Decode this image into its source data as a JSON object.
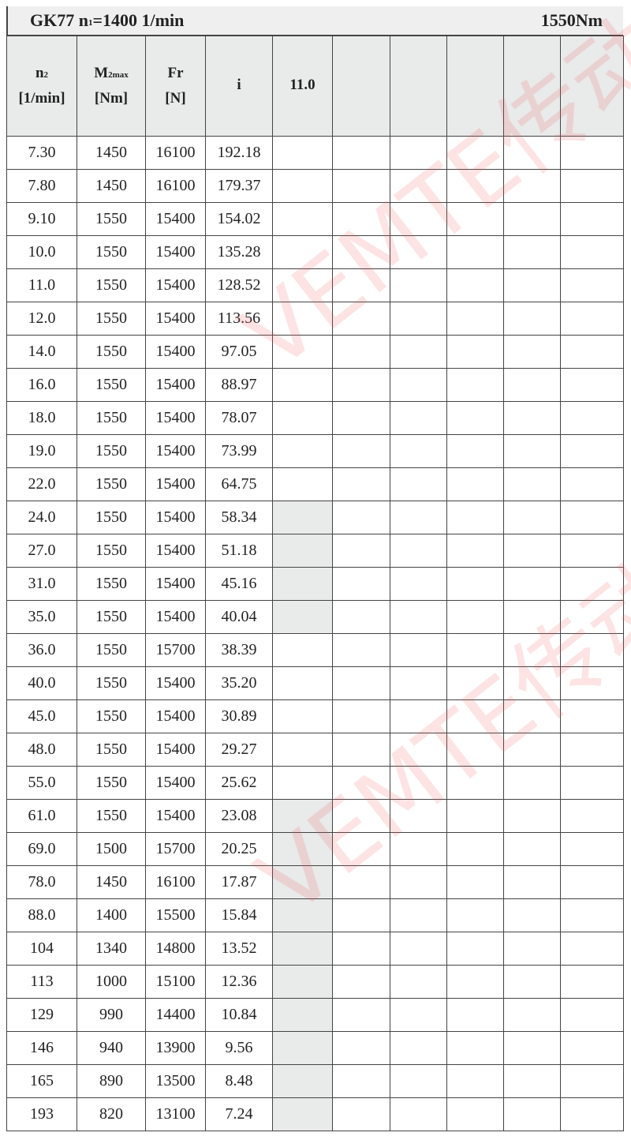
{
  "title": {
    "model": "GK77",
    "n1_label": "n",
    "n1_sub": "1",
    "n1_value": "=1400 1/min",
    "torque": "1550Nm"
  },
  "headers": [
    {
      "main": "n",
      "sub": "2",
      "unit": "[1/min]"
    },
    {
      "main": "M",
      "sub": "2max",
      "unit": "[Nm]"
    },
    {
      "main": "Fr",
      "sub": "",
      "unit": "[N]"
    },
    {
      "main": "i",
      "sub": "",
      "unit": ""
    },
    {
      "main": "11.0",
      "sub": "",
      "unit": ""
    }
  ],
  "empty_columns": 5,
  "shade_color": "#e9eaea",
  "watermark": "VEMTE传动",
  "rows": [
    {
      "n2": "7.30",
      "m2": "1450",
      "fr": "16100",
      "i": "192.18",
      "shaded": false
    },
    {
      "n2": "7.80",
      "m2": "1450",
      "fr": "16100",
      "i": "179.37",
      "shaded": false
    },
    {
      "n2": "9.10",
      "m2": "1550",
      "fr": "15400",
      "i": "154.02",
      "shaded": false
    },
    {
      "n2": "10.0",
      "m2": "1550",
      "fr": "15400",
      "i": "135.28",
      "shaded": false
    },
    {
      "n2": "11.0",
      "m2": "1550",
      "fr": "15400",
      "i": "128.52",
      "shaded": false
    },
    {
      "n2": "12.0",
      "m2": "1550",
      "fr": "15400",
      "i": "113.56",
      "shaded": false
    },
    {
      "n2": "14.0",
      "m2": "1550",
      "fr": "15400",
      "i": "97.05",
      "shaded": false
    },
    {
      "n2": "16.0",
      "m2": "1550",
      "fr": "15400",
      "i": "88.97",
      "shaded": false
    },
    {
      "n2": "18.0",
      "m2": "1550",
      "fr": "15400",
      "i": "78.07",
      "shaded": false
    },
    {
      "n2": "19.0",
      "m2": "1550",
      "fr": "15400",
      "i": "73.99",
      "shaded": false
    },
    {
      "n2": "22.0",
      "m2": "1550",
      "fr": "15400",
      "i": "64.75",
      "shaded": false
    },
    {
      "n2": "24.0",
      "m2": "1550",
      "fr": "15400",
      "i": "58.34",
      "shaded": true
    },
    {
      "n2": "27.0",
      "m2": "1550",
      "fr": "15400",
      "i": "51.18",
      "shaded": true
    },
    {
      "n2": "31.0",
      "m2": "1550",
      "fr": "15400",
      "i": "45.16",
      "shaded": true
    },
    {
      "n2": "35.0",
      "m2": "1550",
      "fr": "15400",
      "i": "40.04",
      "shaded": true
    },
    {
      "n2": "36.0",
      "m2": "1550",
      "fr": "15700",
      "i": "38.39",
      "shaded": false
    },
    {
      "n2": "40.0",
      "m2": "1550",
      "fr": "15400",
      "i": "35.20",
      "shaded": false
    },
    {
      "n2": "45.0",
      "m2": "1550",
      "fr": "15400",
      "i": "30.89",
      "shaded": false
    },
    {
      "n2": "48.0",
      "m2": "1550",
      "fr": "15400",
      "i": "29.27",
      "shaded": false
    },
    {
      "n2": "55.0",
      "m2": "1550",
      "fr": "15400",
      "i": "25.62",
      "shaded": false
    },
    {
      "n2": "61.0",
      "m2": "1550",
      "fr": "15400",
      "i": "23.08",
      "shaded": true
    },
    {
      "n2": "69.0",
      "m2": "1500",
      "fr": "15700",
      "i": "20.25",
      "shaded": true
    },
    {
      "n2": "78.0",
      "m2": "1450",
      "fr": "16100",
      "i": "17.87",
      "shaded": true
    },
    {
      "n2": "88.0",
      "m2": "1400",
      "fr": "15500",
      "i": "15.84",
      "shaded": true
    },
    {
      "n2": "104",
      "m2": "1340",
      "fr": "14800",
      "i": "13.52",
      "shaded": true
    },
    {
      "n2": "113",
      "m2": "1000",
      "fr": "15100",
      "i": "12.36",
      "shaded": true
    },
    {
      "n2": "129",
      "m2": "990",
      "fr": "14400",
      "i": "10.84",
      "shaded": true
    },
    {
      "n2": "146",
      "m2": "940",
      "fr": "13900",
      "i": "9.56",
      "shaded": true
    },
    {
      "n2": "165",
      "m2": "890",
      "fr": "13500",
      "i": "8.48",
      "shaded": true
    },
    {
      "n2": "193",
      "m2": "820",
      "fr": "13100",
      "i": "7.24",
      "shaded": true
    }
  ]
}
